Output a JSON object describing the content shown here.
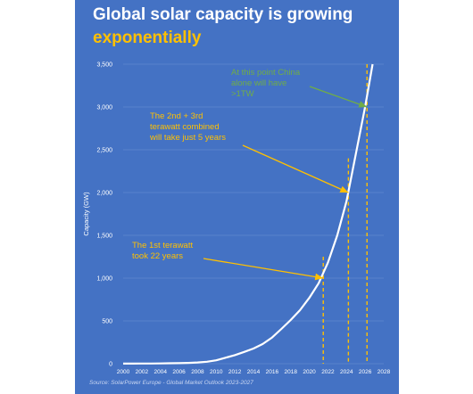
{
  "title_line1": "Global solar capacity is growing",
  "title_line2": "exponentially",
  "source": "Source: SolarPower Europe - Global Market Outlook 2023-2027",
  "colors": {
    "background": "#4472c4",
    "curve": "#ffffff",
    "accent": "#ffc000",
    "china": "#70ad47",
    "grid": "#6a8fd3"
  },
  "chart_data": {
    "type": "line",
    "title": "Global solar capacity is growing exponentially",
    "xlabel": "",
    "ylabel": "Capacity (GW)",
    "xlim": [
      2000,
      2028
    ],
    "ylim": [
      0,
      3500
    ],
    "x_ticks": [
      "2000",
      "2002",
      "2004",
      "2006",
      "2008",
      "2010",
      "2012",
      "2014",
      "2016",
      "2018",
      "2020",
      "2022",
      "2024",
      "2026",
      "2028"
    ],
    "y_ticks": [
      "0",
      "500",
      "1,000",
      "1,500",
      "2,000",
      "2,500",
      "3,000",
      "3,500"
    ],
    "grid": "horizontal",
    "series": [
      {
        "name": "",
        "x": [
          2000,
          2001,
          2002,
          2003,
          2004,
          2005,
          2006,
          2007,
          2008,
          2009,
          2010,
          2011,
          2012,
          2013,
          2014,
          2015,
          2016,
          2017,
          2018,
          2019,
          2020,
          2021,
          2022,
          2023,
          2024,
          2025,
          2026,
          2026.8
        ],
        "y": [
          1,
          1,
          2,
          2,
          3,
          5,
          6,
          9,
          15,
          23,
          40,
          70,
          100,
          138,
          177,
          230,
          306,
          406,
          510,
          625,
          770,
          940,
          1180,
          1500,
          1900,
          2450,
          3000,
          3500
        ]
      }
    ],
    "markers": [
      {
        "x": 2021.5,
        "y": 1000,
        "top": 1250
      },
      {
        "x": 2024.2,
        "y": 2000,
        "top": 2400
      },
      {
        "x": 2026.2,
        "y": 3000,
        "top": 3500
      }
    ],
    "annotations": [
      {
        "lines": [
          "The 1st terawatt",
          "took 22 years"
        ],
        "color": "#ffc000",
        "target_x": 2021.5,
        "target_y": 1000
      },
      {
        "lines": [
          "The 2nd + 3rd",
          "terawatt combined",
          "will take just 5 years"
        ],
        "color": "#ffc000",
        "target_x": 2024.2,
        "target_y": 2000
      },
      {
        "lines": [
          "At this point China",
          "alone will have",
          ">1TW"
        ],
        "color": "#70ad47",
        "target_x": 2026.2,
        "target_y": 3000
      }
    ]
  }
}
